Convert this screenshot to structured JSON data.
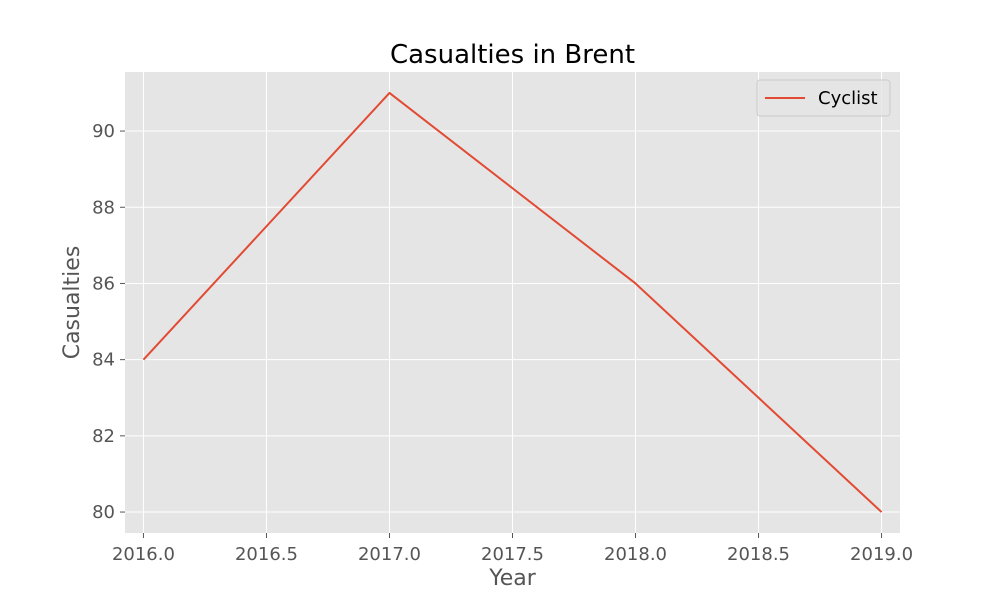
{
  "chart_data": {
    "type": "line",
    "title": "Casualties in Brent",
    "xlabel": "Year",
    "ylabel": "Casualties",
    "xlim": [
      2015.925,
      2019.075
    ],
    "ylim": [
      79.45,
      91.55
    ],
    "xticks": [
      2016.0,
      2016.5,
      2017.0,
      2017.5,
      2018.0,
      2018.5,
      2019.0
    ],
    "xtick_labels": [
      "2016.0",
      "2016.5",
      "2017.0",
      "2017.5",
      "2018.0",
      "2018.5",
      "2019.0"
    ],
    "yticks": [
      80,
      82,
      84,
      86,
      88,
      90
    ],
    "ytick_labels": [
      "80",
      "82",
      "84",
      "86",
      "88",
      "90"
    ],
    "grid": true,
    "legend_position": "top-right",
    "series": [
      {
        "name": "Cyclist",
        "color": "#E24A33",
        "x": [
          2016,
          2017,
          2018,
          2019
        ],
        "y": [
          84,
          91,
          86,
          80
        ]
      }
    ]
  }
}
